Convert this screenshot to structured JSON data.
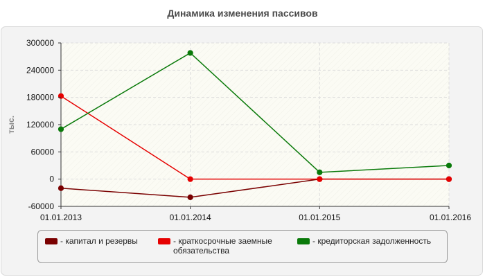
{
  "chart_data": {
    "type": "line",
    "title": "Динамика изменения пассивов",
    "ylabel": "тыс.",
    "xlabel": "",
    "categories": [
      "01.01.2013",
      "01.01.2014",
      "01.01.2015",
      "01.01.2016"
    ],
    "ylim": [
      -60000,
      300000
    ],
    "yticks": [
      -60000,
      0,
      60000,
      120000,
      180000,
      240000,
      300000
    ],
    "ytick_labels": [
      "-60000",
      "0",
      "60000",
      "120000",
      "180000",
      "240000",
      "300000"
    ],
    "grid": true,
    "legend_position": "bottom",
    "series": [
      {
        "name": "- капитал и резервы",
        "color": "#7a0000",
        "values": [
          -20000,
          -40000,
          0,
          0
        ]
      },
      {
        "name": "- краткосрочные заемные обязательства",
        "color": "#e60000",
        "values": [
          183000,
          0,
          0,
          0
        ]
      },
      {
        "name": "- кредиторская задолженность",
        "color": "#0a7a0a",
        "values": [
          110000,
          278000,
          15000,
          30000
        ]
      }
    ]
  }
}
